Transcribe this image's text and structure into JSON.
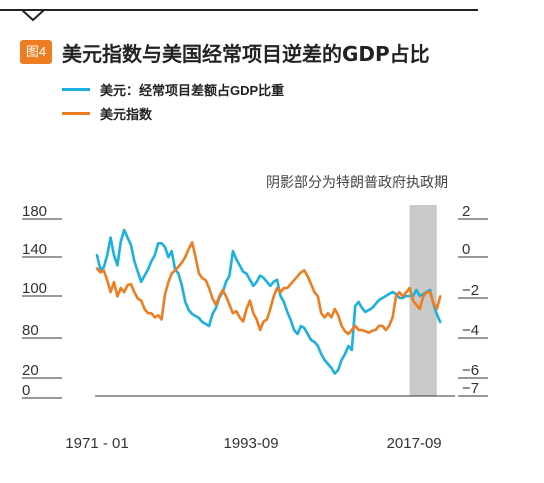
{
  "figure": {
    "badge": "图4",
    "title": "美元指数与美国经常项目逆差的GDP占比",
    "shading_note": "阴影部分为特朗普政府执政期",
    "accent_color": "#ee7d22"
  },
  "chart_data": {
    "type": "line",
    "title": "美元指数与美国经常项目逆差的GDP占比",
    "xlabel": "",
    "x_ticks": [
      "1971-01",
      "1993-09",
      "2017-09"
    ],
    "x_range": [
      "1971-01",
      "2021-12"
    ],
    "left_axis": {
      "ticks": [
        180,
        140,
        100,
        80,
        20,
        0
      ]
    },
    "right_axis": {
      "ticks": [
        2,
        0,
        -2,
        -4,
        -6,
        -7
      ]
    },
    "shaded_period": {
      "start": "2017-01",
      "end": "2021-01"
    },
    "legend_position": "top-left",
    "grid": false,
    "series": [
      {
        "name": "美元：经常项目差额占GDP比重",
        "axis": "right",
        "color": "#1ab0df",
        "dates": [
          1971.0,
          1971.5,
          1972.0,
          1972.5,
          1973.0,
          1973.5,
          1974.0,
          1974.5,
          1975.0,
          1975.5,
          1976.0,
          1976.5,
          1977.0,
          1977.5,
          1978.0,
          1978.5,
          1979.0,
          1979.5,
          1980.0,
          1980.5,
          1981.0,
          1981.5,
          1982.0,
          1982.5,
          1983.0,
          1983.5,
          1984.0,
          1984.5,
          1985.0,
          1985.5,
          1986.0,
          1986.5,
          1987.0,
          1987.5,
          1988.0,
          1988.5,
          1989.0,
          1989.5,
          1990.0,
          1990.5,
          1991.0,
          1991.5,
          1992.0,
          1992.5,
          1993.0,
          1993.5,
          1994.0,
          1994.5,
          1995.0,
          1995.5,
          1996.0,
          1996.5,
          1997.0,
          1997.5,
          1998.0,
          1998.5,
          1999.0,
          1999.5,
          2000.0,
          2000.5,
          2001.0,
          2001.5,
          2002.0,
          2002.5,
          2003.0,
          2003.5,
          2004.0,
          2004.5,
          2005.0,
          2005.5,
          2006.0,
          2006.5,
          2007.0,
          2007.5,
          2008.0,
          2008.5,
          2009.0,
          2009.5,
          2010.0,
          2010.5,
          2011.0,
          2011.5,
          2012.0,
          2012.5,
          2013.0,
          2013.5,
          2014.0,
          2014.5,
          2015.0,
          2015.5,
          2016.0,
          2016.5,
          2017.0,
          2017.5,
          2018.0,
          2018.5,
          2019.0,
          2019.5,
          2020.0,
          2020.5,
          2021.0,
          2021.5
        ],
        "values": [
          -0.3,
          -1.0,
          -0.9,
          -0.3,
          0.6,
          -0.3,
          -0.8,
          0.4,
          1.0,
          0.6,
          0.2,
          -0.6,
          -1.1,
          -1.6,
          -1.3,
          -1.0,
          -0.6,
          -0.3,
          0.3,
          0.3,
          0.1,
          -0.4,
          -0.1,
          -1.0,
          -1.2,
          -1.8,
          -2.6,
          -3.0,
          -3.2,
          -3.3,
          -3.4,
          -3.6,
          -3.7,
          -3.8,
          -3.2,
          -2.9,
          -2.4,
          -2.1,
          -1.6,
          -1.3,
          -0.1,
          -0.5,
          -0.8,
          -1.1,
          -1.2,
          -1.5,
          -1.8,
          -1.6,
          -1.3,
          -1.4,
          -1.6,
          -1.8,
          -1.6,
          -1.5,
          -2.3,
          -2.6,
          -3.1,
          -3.5,
          -4.0,
          -4.2,
          -3.8,
          -3.9,
          -4.2,
          -4.5,
          -4.6,
          -4.8,
          -5.2,
          -5.5,
          -5.7,
          -5.9,
          -6.2,
          -6.0,
          -5.5,
          -5.2,
          -4.8,
          -5.0,
          -2.8,
          -2.6,
          -2.9,
          -3.1,
          -3.0,
          -2.9,
          -2.7,
          -2.5,
          -2.4,
          -2.3,
          -2.2,
          -2.1,
          -2.2,
          -2.4,
          -2.4,
          -2.3,
          -2.3,
          -2.3,
          -2.0,
          -2.3,
          -2.2,
          -2.1,
          -2.0,
          -2.7,
          -3.2,
          -3.6
        ]
      },
      {
        "name": "美元指数",
        "axis": "left",
        "color": "#ee7d22",
        "dates": [
          1971.0,
          1971.5,
          1972.0,
          1972.5,
          1973.0,
          1973.5,
          1974.0,
          1974.5,
          1975.0,
          1975.5,
          1976.0,
          1976.5,
          1977.0,
          1977.5,
          1978.0,
          1978.5,
          1979.0,
          1979.5,
          1980.0,
          1980.5,
          1981.0,
          1981.5,
          1982.0,
          1982.5,
          1983.0,
          1983.5,
          1984.0,
          1984.5,
          1985.0,
          1985.5,
          1986.0,
          1986.5,
          1987.0,
          1987.5,
          1988.0,
          1988.5,
          1989.0,
          1989.5,
          1990.0,
          1990.5,
          1991.0,
          1991.5,
          1992.0,
          1992.5,
          1993.0,
          1993.5,
          1994.0,
          1994.5,
          1995.0,
          1995.5,
          1996.0,
          1996.5,
          1997.0,
          1997.5,
          1998.0,
          1998.5,
          1999.0,
          1999.5,
          2000.0,
          2000.5,
          2001.0,
          2001.5,
          2002.0,
          2002.5,
          2003.0,
          2003.5,
          2004.0,
          2004.5,
          2005.0,
          2005.5,
          2006.0,
          2006.5,
          2007.0,
          2007.5,
          2008.0,
          2008.5,
          2009.0,
          2009.5,
          2010.0,
          2010.5,
          2011.0,
          2011.5,
          2012.0,
          2012.5,
          2013.0,
          2013.5,
          2014.0,
          2014.5,
          2015.0,
          2015.5,
          2016.0,
          2016.5,
          2017.0,
          2017.5,
          2018.0,
          2018.5,
          2019.0,
          2019.5,
          2020.0,
          2020.5,
          2021.0,
          2021.5
        ],
        "values": [
          120,
          116,
          118,
          108,
          98,
          106,
          96,
          100,
          98,
          103,
          104,
          98,
          95,
          94,
          90,
          88,
          88,
          86,
          87,
          85,
          97,
          106,
          115,
          118,
          122,
          126,
          132,
          140,
          147,
          132,
          115,
          110,
          108,
          100,
          95,
          92,
          96,
          99,
          96,
          92,
          88,
          89,
          86,
          84,
          90,
          94,
          88,
          85,
          80,
          84,
          85,
          90,
          96,
          100,
          98,
          100,
          100,
          104,
          108,
          112,
          116,
          118,
          112,
          104,
          98,
          96,
          88,
          86,
          88,
          86,
          90,
          87,
          82,
          78,
          74,
          80,
          82,
          80,
          80,
          78,
          76,
          79,
          80,
          82,
          82,
          80,
          82,
          86,
          96,
          98,
          96,
          98,
          100,
          94,
          92,
          90,
          96,
          98,
          98,
          93,
          90,
          96
        ]
      }
    ]
  }
}
